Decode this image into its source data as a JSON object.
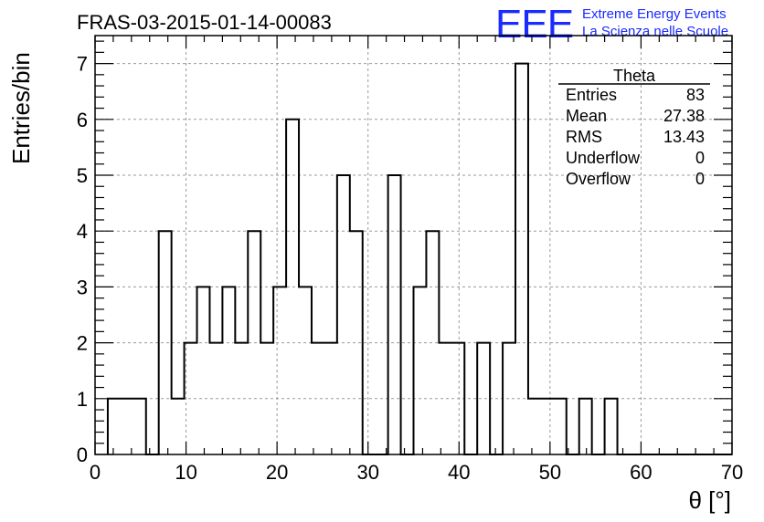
{
  "chart_data": {
    "type": "bar",
    "title": "FRAS-03-2015-01-14-00083",
    "xlabel": "θ [°]",
    "ylabel": "Entries/bin",
    "xlim": [
      0,
      70
    ],
    "ylim": [
      0,
      7.5
    ],
    "x_ticks": [
      0,
      10,
      20,
      30,
      40,
      50,
      60,
      70
    ],
    "y_ticks": [
      0,
      1,
      2,
      3,
      4,
      5,
      6,
      7
    ],
    "grid": true,
    "bin_width": 1.4,
    "bin_start": 1.4,
    "values": [
      1,
      1,
      1,
      0,
      4,
      1,
      2,
      3,
      2,
      3,
      2,
      4,
      2,
      3,
      6,
      3,
      2,
      2,
      5,
      4,
      0,
      0,
      5,
      0,
      3,
      4,
      2,
      2,
      0,
      2,
      0,
      2,
      7,
      1,
      1,
      1,
      0,
      1,
      0,
      1,
      0,
      0,
      0,
      0,
      0,
      0,
      0,
      0,
      0
    ],
    "stats_box": {
      "name": "Theta",
      "rows": [
        {
          "label": "Entries",
          "value": "83"
        },
        {
          "label": "Mean",
          "value": "27.38"
        },
        {
          "label": "RMS",
          "value": "13.43"
        },
        {
          "label": "Underflow",
          "value": "0"
        },
        {
          "label": "Overflow",
          "value": "0"
        }
      ]
    }
  },
  "logo": {
    "mark": "EEE",
    "line1": "Extreme Energy Events",
    "line2": "La Scienza nelle Scuole",
    "color": "#1a2bff"
  }
}
